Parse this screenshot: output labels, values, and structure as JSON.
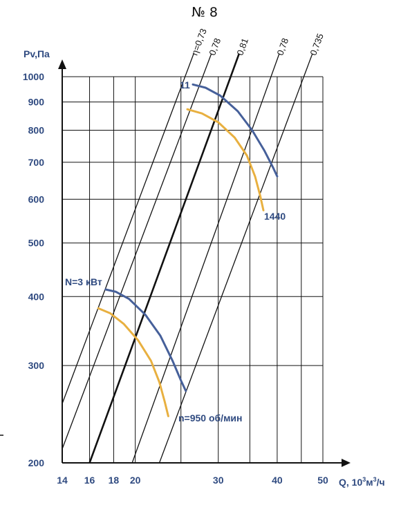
{
  "chart_data": {
    "type": "line",
    "title": "№ 8",
    "ylabel": "Pv,Па",
    "xlabel_parts": [
      "Q, 10",
      "3",
      "м",
      "3",
      "/ч"
    ],
    "x_scale": "log",
    "y_scale": "log",
    "xlim": [
      14,
      50
    ],
    "ylim": [
      200,
      1000
    ],
    "x_ticks": [
      14,
      16,
      18,
      20,
      30,
      40,
      50
    ],
    "x_grid": [
      14,
      16,
      18,
      20,
      25,
      30,
      35,
      40,
      45,
      50
    ],
    "y_ticks": [
      200,
      300,
      400,
      500,
      600,
      700,
      800,
      900,
      1000
    ],
    "grid": true,
    "efficiency_lines": [
      {
        "label": "η=0,73",
        "bold": false,
        "points": [
          [
            14,
            256
          ],
          [
            26.6,
            1100
          ]
        ]
      },
      {
        "label": "0,78",
        "bold": false,
        "points": [
          [
            14,
            212
          ],
          [
            29.0,
            1100
          ]
        ]
      },
      {
        "label": "0,81",
        "bold": true,
        "points": [
          [
            16,
            200
          ],
          [
            33.2,
            1100
          ]
        ]
      },
      {
        "label": "0,78",
        "bold": false,
        "points": [
          [
            19.7,
            200
          ],
          [
            40.4,
            1100
          ]
        ]
      },
      {
        "label": "0,735",
        "bold": false,
        "points": [
          [
            22.5,
            200
          ],
          [
            47.5,
            1100
          ]
        ]
      }
    ],
    "series": [
      {
        "name": "n=950 об/мин",
        "color": "#46609a",
        "points": [
          [
            17.3,
            412
          ],
          [
            18.2,
            408
          ],
          [
            19.4,
            396
          ],
          [
            21.0,
            371
          ],
          [
            22.6,
            340
          ],
          [
            24.0,
            306
          ],
          [
            25.0,
            282
          ],
          [
            25.6,
            270
          ]
        ]
      },
      {
        "name": "N=3 кВт",
        "color": "#e8b040",
        "points": [
          [
            16.7,
            381
          ],
          [
            17.7,
            373
          ],
          [
            18.9,
            357
          ],
          [
            20.3,
            333
          ],
          [
            21.6,
            306
          ],
          [
            22.5,
            280
          ],
          [
            23.1,
            258
          ],
          [
            23.5,
            243
          ]
        ]
      },
      {
        "name": "1440",
        "color": "#46609a",
        "points": [
          [
            26.5,
            968
          ],
          [
            28.2,
            955
          ],
          [
            30.3,
            924
          ],
          [
            33.0,
            866
          ],
          [
            35.4,
            800
          ],
          [
            37.6,
            734
          ],
          [
            39.2,
            685
          ],
          [
            40.0,
            660
          ]
        ]
      },
      {
        "name": "11",
        "color": "#e8b040",
        "points": [
          [
            25.8,
            873
          ],
          [
            27.7,
            858
          ],
          [
            30.0,
            827
          ],
          [
            32.5,
            776
          ],
          [
            34.5,
            720
          ],
          [
            35.9,
            660
          ],
          [
            36.8,
            610
          ],
          [
            37.4,
            573
          ]
        ]
      }
    ],
    "annotations": [
      "11",
      "1440",
      "N=3 кВт",
      "n=950 об/мин"
    ]
  }
}
